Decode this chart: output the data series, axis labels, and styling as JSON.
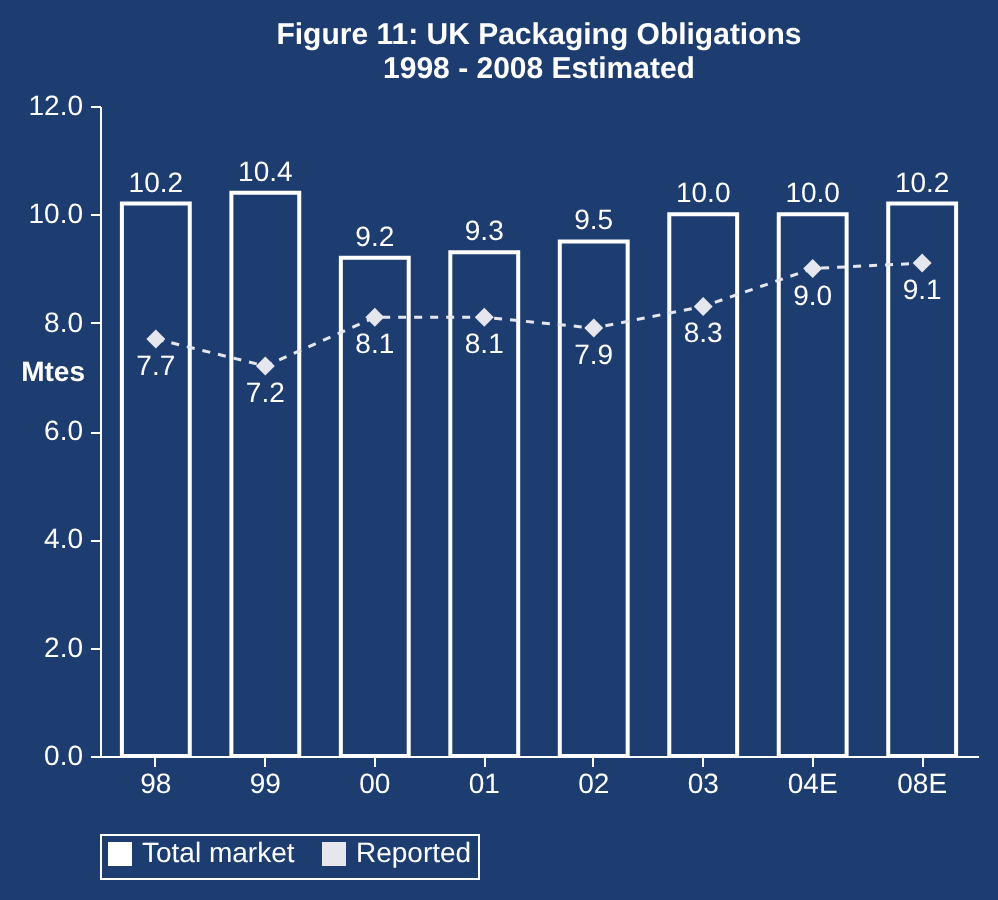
{
  "chart_data": {
    "type": "bar",
    "title": [
      "Figure 11: UK Packaging Obligations",
      "1998 - 2008 Estimated"
    ],
    "ylabel": "Mtes",
    "categories": [
      "98",
      "99",
      "00",
      "01",
      "02",
      "03",
      "04E",
      "08E"
    ],
    "series": [
      {
        "name": "Total market",
        "color": "#ffffff",
        "values": [
          10.2,
          10.4,
          9.2,
          9.3,
          9.5,
          10.0,
          10.0,
          10.2
        ],
        "value_labels": [
          "10.2",
          "10.4",
          "9.2",
          "9.3",
          "9.5",
          "10.0",
          "10.0",
          "10.2"
        ]
      },
      {
        "name": "Reported",
        "type": "line",
        "color": "#e6e6ee",
        "marker": "diamond",
        "line_style": "dashed",
        "values": [
          7.7,
          7.2,
          8.1,
          8.1,
          7.9,
          8.3,
          9.0,
          9.1
        ],
        "value_labels": [
          "7.7",
          "7.2",
          "8.1",
          "8.1",
          "7.9",
          "8.3",
          "9.0",
          "9.1"
        ]
      }
    ],
    "ylim": [
      0,
      12
    ],
    "yticks": [
      {
        "value": 0,
        "label": "0.0"
      },
      {
        "value": 2,
        "label": "2.0"
      },
      {
        "value": 4,
        "label": "4.0"
      },
      {
        "value": 6,
        "label": "6.0"
      },
      {
        "value": 8,
        "label": "8.0"
      },
      {
        "value": 10,
        "label": "10.0"
      },
      {
        "value": 12,
        "label": "12.0"
      }
    ],
    "grid": false,
    "legend": "bottom"
  }
}
